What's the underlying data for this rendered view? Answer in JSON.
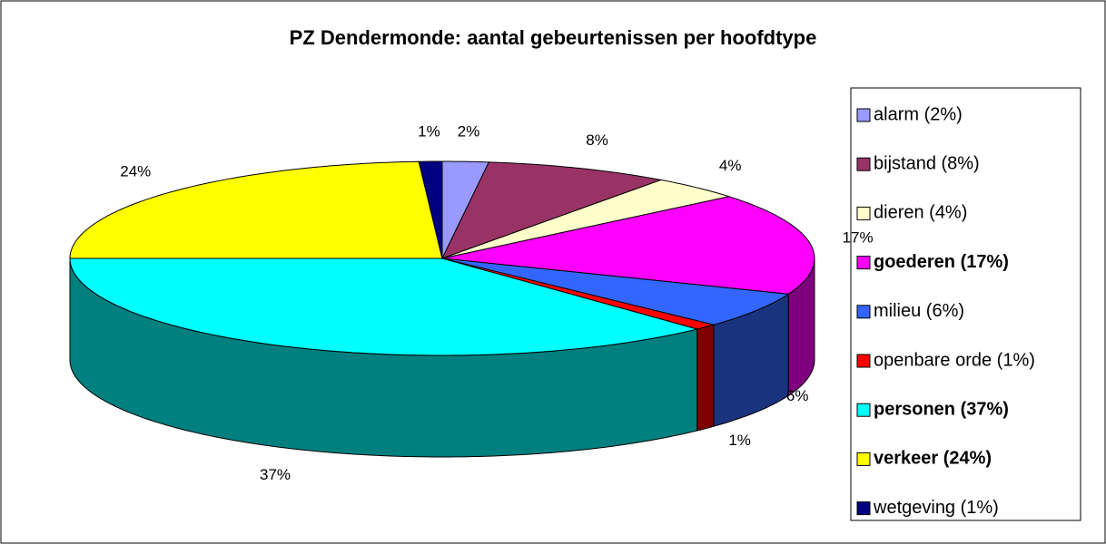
{
  "chart_data": {
    "type": "pie3d",
    "title": "PZ Dendermonde: aantal gebeurtenissen per hoofdtype",
    "categories": [
      "alarm (2%)",
      "bijstand (8%)",
      "dieren (4%)",
      "goederen (17%)",
      "milieu (6%)",
      "openbare orde (1%)",
      "personen (37%)",
      "verkeer (24%)",
      "wetgeving (1%)"
    ],
    "values": [
      2,
      8,
      4,
      17,
      6,
      1,
      37,
      24,
      1
    ],
    "value_labels": [
      "2%",
      "8%",
      "4%",
      "17%",
      "6%",
      "1%",
      "37%",
      "24%",
      "1%"
    ],
    "colors": [
      "#9999ff",
      "#993366",
      "#ffffcc",
      "#ff00ff",
      "#3366ff",
      "#ff0000",
      "#00ffff",
      "#ffff00",
      "#000080"
    ],
    "legend_bold": [
      false,
      false,
      false,
      true,
      false,
      false,
      true,
      true,
      false
    ],
    "legend": "right"
  }
}
